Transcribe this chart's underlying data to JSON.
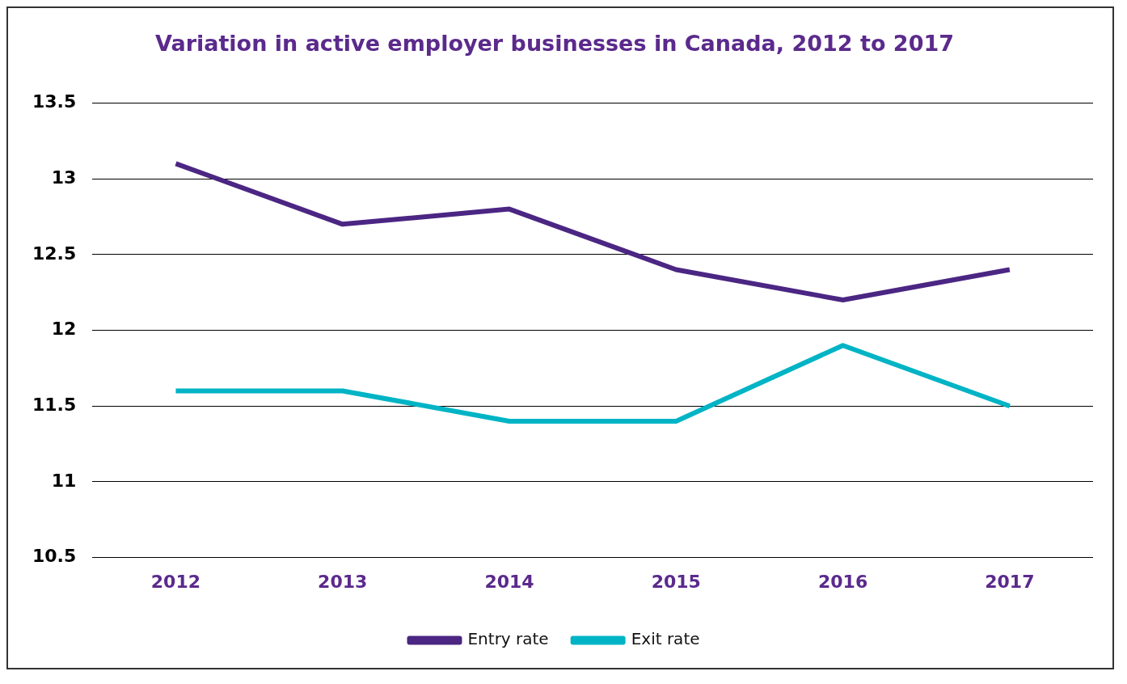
{
  "chart_data": {
    "type": "line",
    "title": "Variation in active employer businesses in Canada, 2012 to 2017",
    "categories": [
      "2012",
      "2013",
      "2014",
      "2015",
      "2016",
      "2017"
    ],
    "series": [
      {
        "name": "Entry rate",
        "color": "#4b2683",
        "values": [
          13.1,
          12.7,
          12.8,
          12.4,
          12.2,
          12.4
        ]
      },
      {
        "name": "Exit rate",
        "color": "#00b4c5",
        "values": [
          11.6,
          11.6,
          11.4,
          11.4,
          11.9,
          11.5
        ]
      }
    ],
    "ylim": [
      10.5,
      13.5
    ],
    "yticks": [
      10.5,
      11,
      11.5,
      12,
      12.5,
      13,
      13.5
    ],
    "grid": "y",
    "legend": "bottom",
    "marker": "none",
    "line_style": "solid"
  }
}
